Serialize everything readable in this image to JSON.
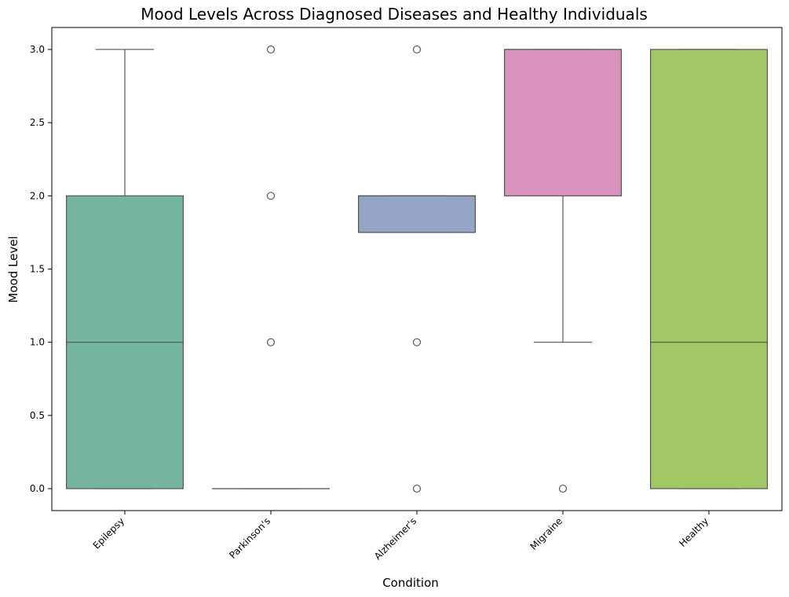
{
  "chart_data": {
    "type": "box",
    "title": "Mood Levels Across Diagnosed Diseases and Healthy Individuals",
    "xlabel": "Condition",
    "ylabel": "Mood Level",
    "ylim": [
      -0.15,
      3.15
    ],
    "yticks": [
      "0.0",
      "0.5",
      "1.0",
      "1.5",
      "2.0",
      "2.5",
      "3.0"
    ],
    "grid": false,
    "categories": [
      "Epilepsy",
      "Parkinson's",
      "Alzheimer's",
      "Migraine",
      "Healthy"
    ],
    "boxes": [
      {
        "category": "Epilepsy",
        "q1": 0,
        "median": 1,
        "q3": 2,
        "whisker_low": 0,
        "whisker_high": 3,
        "outliers": [],
        "color": "#73b5a1"
      },
      {
        "category": "Parkinson's",
        "q1": 0,
        "median": 0,
        "q3": 0,
        "whisker_low": 0,
        "whisker_high": 0,
        "outliers": [
          1,
          2,
          3
        ],
        "color": "#f09c7f"
      },
      {
        "category": "Alzheimer's",
        "q1": 1.75,
        "median": 2,
        "q3": 2,
        "whisker_low": 1.75,
        "whisker_high": 2,
        "outliers": [
          0,
          1,
          3
        ],
        "color": "#93a4c5"
      },
      {
        "category": "Migraine",
        "q1": 2,
        "median": 3,
        "q3": 3,
        "whisker_low": 1,
        "whisker_high": 3,
        "outliers": [
          0
        ],
        "color": "#da93bd"
      },
      {
        "category": "Healthy",
        "q1": 0,
        "median": 1,
        "q3": 3,
        "whisker_low": 0,
        "whisker_high": 3,
        "outliers": [],
        "color": "#a1c865"
      }
    ]
  }
}
